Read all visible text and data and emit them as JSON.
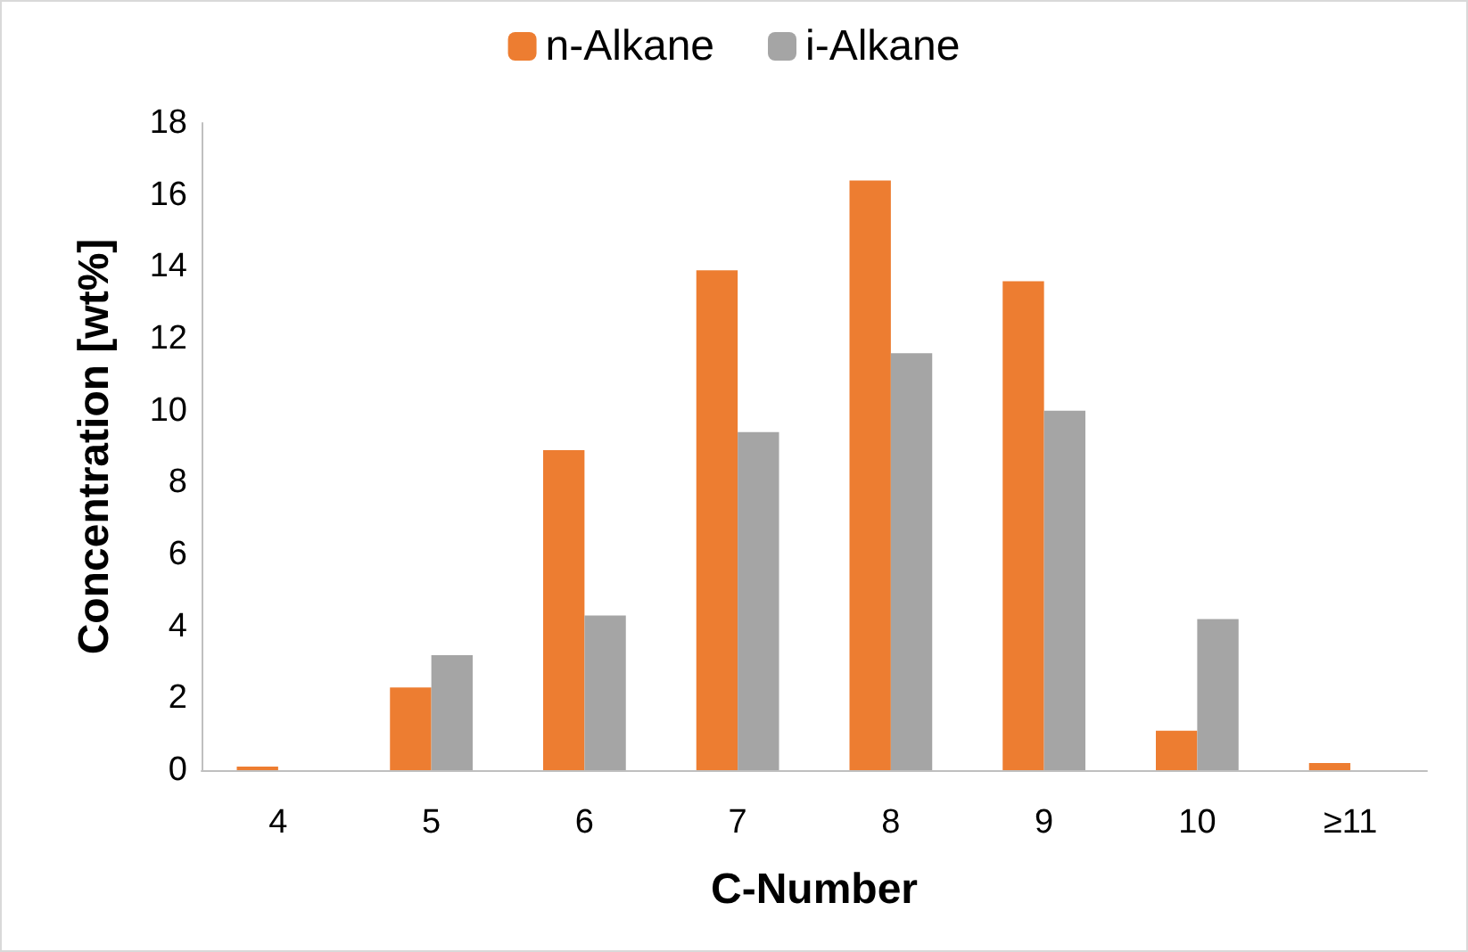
{
  "chart_data": {
    "type": "bar",
    "xlabel": "C-Number",
    "ylabel": "Concentration [wt%]",
    "categories": [
      "4",
      "5",
      "6",
      "7",
      "8",
      "9",
      "10",
      "≥11"
    ],
    "series": [
      {
        "name": "n-Alkane",
        "color": "#ed7d31",
        "values": [
          0.1,
          2.3,
          8.9,
          13.9,
          16.4,
          13.6,
          1.1,
          0.2
        ]
      },
      {
        "name": "i-Alkane",
        "color": "#a5a5a5",
        "values": [
          0,
          3.2,
          4.3,
          9.4,
          11.6,
          10.0,
          4.2,
          0
        ]
      }
    ],
    "ylim": [
      0,
      18
    ],
    "yticks": [
      0,
      2,
      4,
      6,
      8,
      10,
      12,
      14,
      16,
      18
    ],
    "grid": false,
    "legend": "top"
  }
}
